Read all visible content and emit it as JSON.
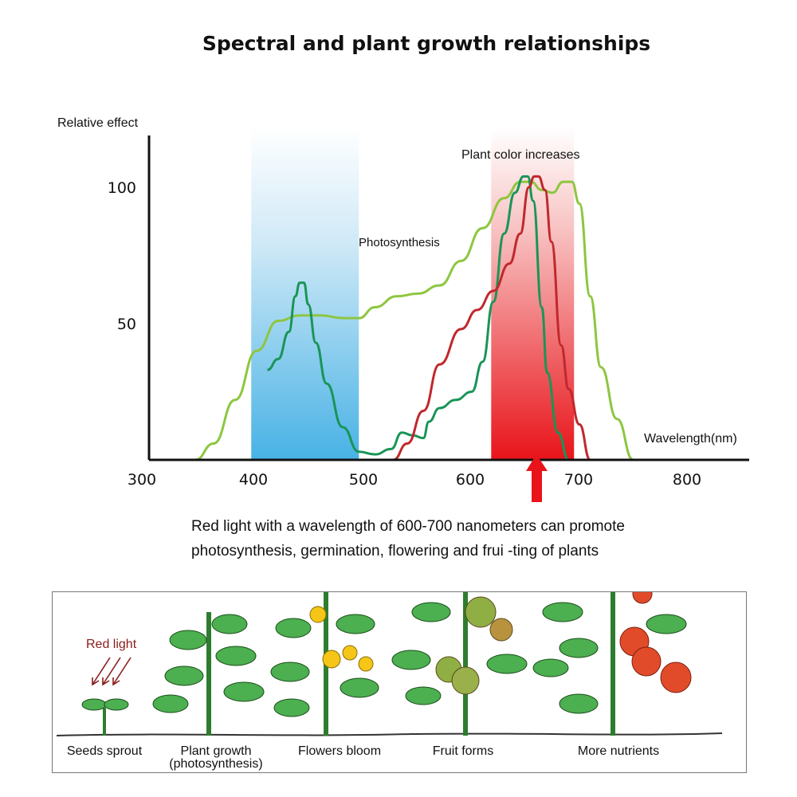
{
  "title": "Spectral and plant growth relationships",
  "chart_data": {
    "type": "line",
    "ylabel": "Relative effect",
    "xlabel": "Wavelength(nm)",
    "x_ticks": [
      "300",
      "400",
      "500",
      "600",
      "700",
      "800"
    ],
    "y_ticks": [
      "50",
      "100"
    ],
    "xlim": [
      300,
      860
    ],
    "ylim": [
      0,
      120
    ],
    "annotations": [
      "Photosynthesis",
      "Plant color increases"
    ],
    "bands": [
      {
        "x": [
          395,
          495
        ],
        "color": "#4db3e6"
      },
      {
        "x": [
          618,
          695
        ],
        "color": "#e8141a"
      }
    ],
    "arrow_at": 657,
    "series": [
      {
        "color": "#8dc63f",
        "points": [
          [
            343,
            0
          ],
          [
            360,
            6
          ],
          [
            380,
            22
          ],
          [
            400,
            40
          ],
          [
            420,
            51
          ],
          [
            440,
            53
          ],
          [
            460,
            53
          ],
          [
            480,
            52
          ],
          [
            495,
            52
          ],
          [
            510,
            56
          ],
          [
            530,
            60
          ],
          [
            550,
            61
          ],
          [
            570,
            64
          ],
          [
            590,
            73
          ],
          [
            610,
            85
          ],
          [
            630,
            96
          ],
          [
            645,
            102
          ],
          [
            655,
            102
          ],
          [
            665,
            99
          ],
          [
            675,
            98
          ],
          [
            685,
            102
          ],
          [
            693,
            102
          ],
          [
            700,
            94
          ],
          [
            710,
            60
          ],
          [
            720,
            34
          ],
          [
            735,
            15
          ],
          [
            750,
            0
          ]
        ]
      },
      {
        "color": "#1a9457",
        "points": [
          [
            410,
            33
          ],
          [
            420,
            37
          ],
          [
            430,
            47
          ],
          [
            436,
            60
          ],
          [
            440,
            65
          ],
          [
            444,
            65
          ],
          [
            448,
            57
          ],
          [
            455,
            43
          ],
          [
            465,
            28
          ],
          [
            480,
            12
          ],
          [
            495,
            3
          ],
          [
            510,
            2
          ],
          [
            525,
            4
          ],
          [
            535,
            10
          ],
          [
            545,
            9
          ],
          [
            555,
            8
          ],
          [
            560,
            14
          ],
          [
            570,
            19
          ],
          [
            585,
            22
          ],
          [
            600,
            25
          ],
          [
            610,
            36
          ],
          [
            620,
            58
          ],
          [
            630,
            83
          ],
          [
            640,
            98
          ],
          [
            648,
            104
          ],
          [
            652,
            104
          ],
          [
            657,
            95
          ],
          [
            665,
            56
          ],
          [
            670,
            32
          ],
          [
            680,
            10
          ],
          [
            690,
            0
          ]
        ]
      },
      {
        "color": "#c0282c",
        "points": [
          [
            527,
            0
          ],
          [
            540,
            6
          ],
          [
            555,
            18
          ],
          [
            570,
            35
          ],
          [
            590,
            48
          ],
          [
            605,
            55
          ],
          [
            620,
            62
          ],
          [
            635,
            72
          ],
          [
            645,
            83
          ],
          [
            653,
            100
          ],
          [
            658,
            104
          ],
          [
            662,
            104
          ],
          [
            668,
            99
          ],
          [
            674,
            80
          ],
          [
            683,
            42
          ],
          [
            690,
            26
          ],
          [
            700,
            13
          ],
          [
            710,
            0
          ]
        ]
      }
    ]
  },
  "caption": "Red light with a wavelength of 600-700 nanometers can promote photosynthesis, germination, flowering and frui -ting of plants",
  "stages": {
    "red_light": "Red light",
    "items": [
      {
        "label": "Seeds sprout"
      },
      {
        "label": "Plant growth\n(photosynthesis)"
      },
      {
        "label": "Flowers bloom"
      },
      {
        "label": "Fruit forms"
      },
      {
        "label": "More nutrients"
      }
    ]
  }
}
